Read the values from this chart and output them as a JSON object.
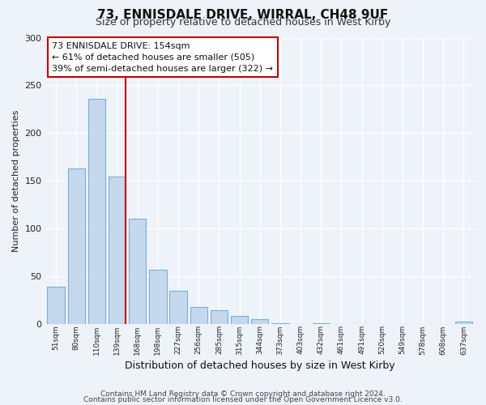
{
  "title": "73, ENNISDALE DRIVE, WIRRAL, CH48 9UF",
  "subtitle": "Size of property relative to detached houses in West Kirby",
  "xlabel": "Distribution of detached houses by size in West Kirby",
  "ylabel": "Number of detached properties",
  "bin_labels": [
    "51sqm",
    "80sqm",
    "110sqm",
    "139sqm",
    "168sqm",
    "198sqm",
    "227sqm",
    "256sqm",
    "285sqm",
    "315sqm",
    "344sqm",
    "373sqm",
    "403sqm",
    "432sqm",
    "461sqm",
    "491sqm",
    "520sqm",
    "549sqm",
    "578sqm",
    "608sqm",
    "637sqm"
  ],
  "bar_heights": [
    39,
    163,
    236,
    154,
    110,
    57,
    35,
    18,
    14,
    8,
    5,
    1,
    0,
    1,
    0,
    0,
    0,
    0,
    0,
    0,
    2
  ],
  "bar_color": "#c5d8ee",
  "bar_edge_color": "#7bafd4",
  "property_line_color": "#c00000",
  "annotation_title": "73 ENNISDALE DRIVE: 154sqm",
  "annotation_line1": "← 61% of detached houses are smaller (505)",
  "annotation_line2": "39% of semi-detached houses are larger (322) →",
  "annotation_box_color": "#ffffff",
  "annotation_box_edge": "#c00000",
  "ylim": [
    0,
    300
  ],
  "yticks": [
    0,
    50,
    100,
    150,
    200,
    250,
    300
  ],
  "footer1": "Contains HM Land Registry data © Crown copyright and database right 2024.",
  "footer2": "Contains public sector information licensed under the Open Government Licence v3.0.",
  "bg_color": "#eef2f9",
  "grid_color": "#ffffff"
}
